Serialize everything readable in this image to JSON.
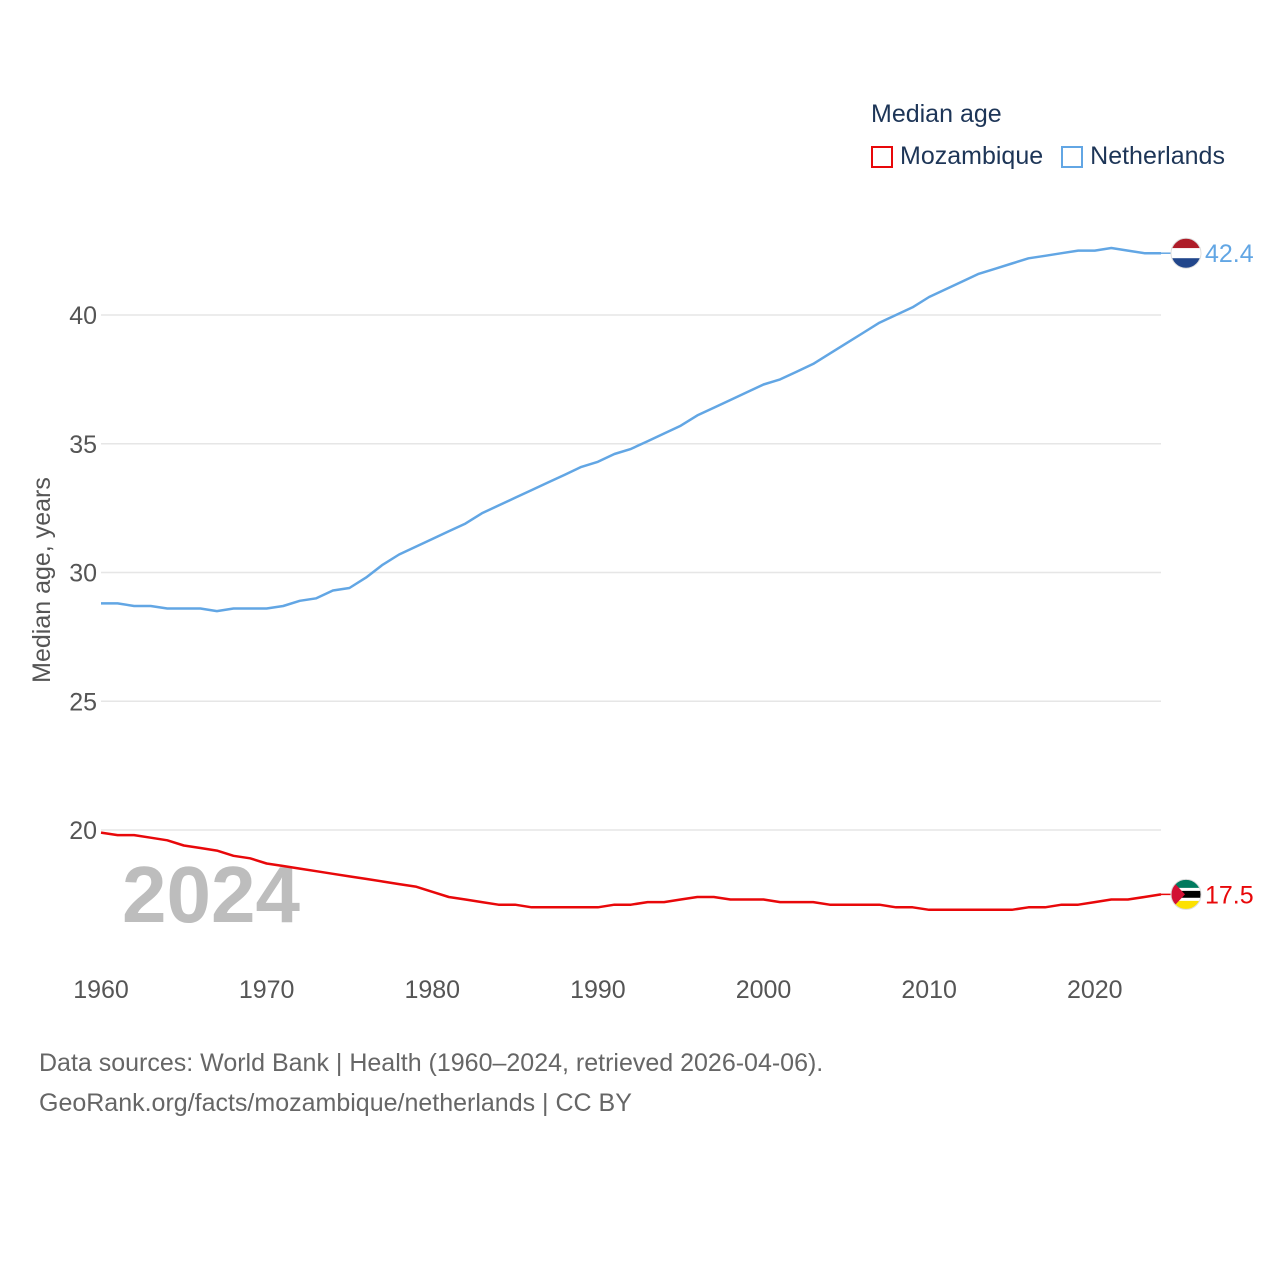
{
  "legend": {
    "title": "Median age",
    "items": [
      {
        "label": "Mozambique",
        "color": "#e8080a"
      },
      {
        "label": "Netherlands",
        "color": "#62a6e4"
      }
    ]
  },
  "watermark_year": "2024",
  "footer": {
    "line1": "Data sources: World Bank | Health (1960–2024, retrieved 2026-04-06).",
    "line2": "GeoRank.org/facts/mozambique/netherlands | CC BY"
  },
  "chart_data": {
    "type": "line",
    "title": "Median age",
    "xlabel": "",
    "ylabel": "Median age, years",
    "xlim": [
      1960,
      2024
    ],
    "ylim": [
      15.5,
      44.5
    ],
    "yticks": [
      20,
      25,
      30,
      35,
      40
    ],
    "xticks": [
      1960,
      1970,
      1980,
      1990,
      2000,
      2010,
      2020
    ],
    "grid": true,
    "legend_position": "top-right",
    "x": [
      1960,
      1961,
      1962,
      1963,
      1964,
      1965,
      1966,
      1967,
      1968,
      1969,
      1970,
      1971,
      1972,
      1973,
      1974,
      1975,
      1976,
      1977,
      1978,
      1979,
      1980,
      1981,
      1982,
      1983,
      1984,
      1985,
      1986,
      1987,
      1988,
      1989,
      1990,
      1991,
      1992,
      1993,
      1994,
      1995,
      1996,
      1997,
      1998,
      1999,
      2000,
      2001,
      2002,
      2003,
      2004,
      2005,
      2006,
      2007,
      2008,
      2009,
      2010,
      2011,
      2012,
      2013,
      2014,
      2015,
      2016,
      2017,
      2018,
      2019,
      2020,
      2021,
      2022,
      2023,
      2024
    ],
    "series": [
      {
        "name": "Mozambique",
        "color": "#e8080a",
        "end_label": "17.5",
        "values": [
          19.9,
          19.8,
          19.8,
          19.7,
          19.6,
          19.4,
          19.3,
          19.2,
          19.0,
          18.9,
          18.7,
          18.6,
          18.5,
          18.4,
          18.3,
          18.2,
          18.1,
          18.0,
          17.9,
          17.8,
          17.6,
          17.4,
          17.3,
          17.2,
          17.1,
          17.1,
          17.0,
          17.0,
          17.0,
          17.0,
          17.0,
          17.1,
          17.1,
          17.2,
          17.2,
          17.3,
          17.4,
          17.4,
          17.3,
          17.3,
          17.3,
          17.2,
          17.2,
          17.2,
          17.1,
          17.1,
          17.1,
          17.1,
          17.0,
          17.0,
          16.9,
          16.9,
          16.9,
          16.9,
          16.9,
          16.9,
          17.0,
          17.0,
          17.1,
          17.1,
          17.2,
          17.3,
          17.3,
          17.4,
          17.5
        ]
      },
      {
        "name": "Netherlands",
        "color": "#62a6e4",
        "end_label": "42.4",
        "values": [
          28.8,
          28.8,
          28.7,
          28.7,
          28.6,
          28.6,
          28.6,
          28.5,
          28.6,
          28.6,
          28.6,
          28.7,
          28.9,
          29.0,
          29.3,
          29.4,
          29.8,
          30.3,
          30.7,
          31.0,
          31.3,
          31.6,
          31.9,
          32.3,
          32.6,
          32.9,
          33.2,
          33.5,
          33.8,
          34.1,
          34.3,
          34.6,
          34.8,
          35.1,
          35.4,
          35.7,
          36.1,
          36.4,
          36.7,
          37.0,
          37.3,
          37.5,
          37.8,
          38.1,
          38.5,
          38.9,
          39.3,
          39.7,
          40.0,
          40.3,
          40.7,
          41.0,
          41.3,
          41.6,
          41.8,
          42.0,
          42.2,
          42.3,
          42.4,
          42.5,
          42.5,
          42.6,
          42.5,
          42.4,
          42.4
        ]
      }
    ]
  }
}
